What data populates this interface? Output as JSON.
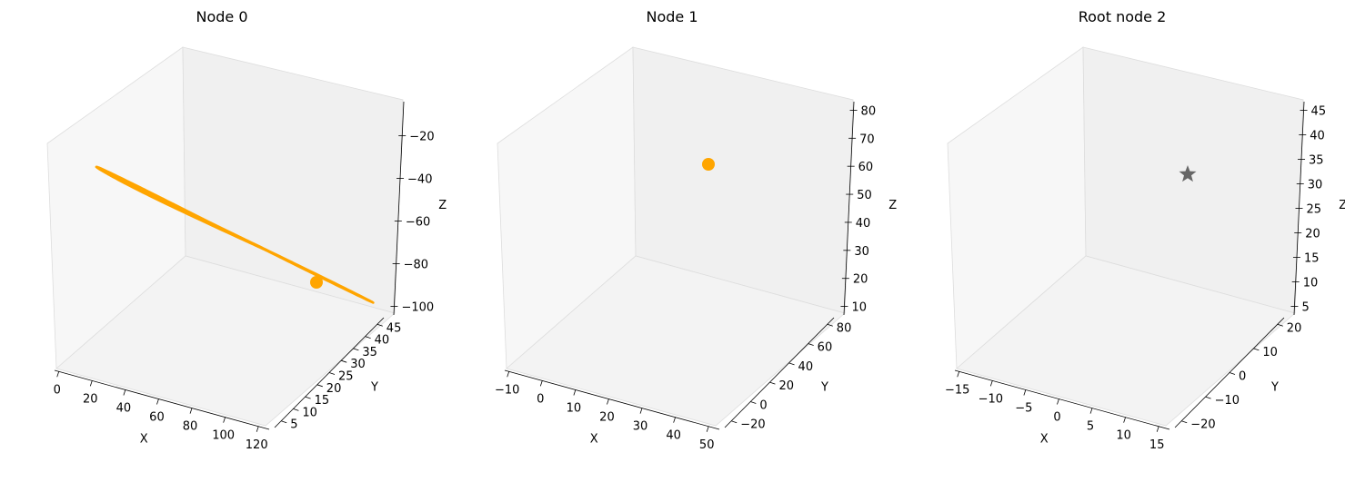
{
  "colors": {
    "orange": "#FFA500",
    "gray": "#666666",
    "pane_left": "#f7f7f7",
    "pane_right": "#f0f0f0",
    "pane_floor": "#f3f3f3",
    "pane_edge": "#dddddd"
  },
  "chart_data": [
    {
      "type": "line3d",
      "title": "Node 0",
      "xlabel": "X",
      "ylabel": "Y",
      "zlabel": "Z",
      "xticks": [
        "0",
        "20",
        "40",
        "60",
        "80",
        "100",
        "120"
      ],
      "yticks": [
        "5",
        "10",
        "15",
        "20",
        "25",
        "30",
        "35",
        "40",
        "45"
      ],
      "zticks": [
        "−20",
        "−40",
        "−60",
        "−80",
        "−100"
      ],
      "xlim": [
        -8,
        130
      ],
      "ylim": [
        2,
        47
      ],
      "zlim": [
        -104,
        -12
      ],
      "series": [
        {
          "color": "orange",
          "marker": "circle",
          "trajectory": "flattened"
        }
      ]
    },
    {
      "type": "line3d",
      "title": "Node 1",
      "xlabel": "X",
      "ylabel": "Y",
      "zlabel": "Z",
      "xticks": [
        "−10",
        "0",
        "10",
        "20",
        "30",
        "40",
        "50"
      ],
      "yticks": [
        "−20",
        "0",
        "20",
        "40",
        "60",
        "80"
      ],
      "zticks": [
        "10",
        "20",
        "30",
        "40",
        "50",
        "60",
        "70",
        "80"
      ],
      "xlim": [
        -17,
        52
      ],
      "ylim": [
        -26,
        92
      ],
      "zlim": [
        5,
        82
      ],
      "series": [
        {
          "color": "orange",
          "marker": "circle",
          "trajectory": "skewed"
        }
      ]
    },
    {
      "type": "line3d",
      "title": "Root node 2",
      "xlabel": "X",
      "ylabel": "Y",
      "zlabel": "Z",
      "xticks": [
        "−15",
        "−10",
        "−5",
        "0",
        "5",
        "10",
        "15"
      ],
      "yticks": [
        "−20",
        "−10",
        "0",
        "10",
        "20"
      ],
      "zticks": [
        "5",
        "10",
        "15",
        "20",
        "25",
        "30",
        "35",
        "40",
        "45"
      ],
      "xlim": [
        -19,
        19
      ],
      "ylim": [
        -25,
        27
      ],
      "zlim": [
        3,
        47
      ],
      "series": [
        {
          "color": "gray",
          "marker": "star",
          "trajectory": "lorenz"
        }
      ]
    }
  ]
}
